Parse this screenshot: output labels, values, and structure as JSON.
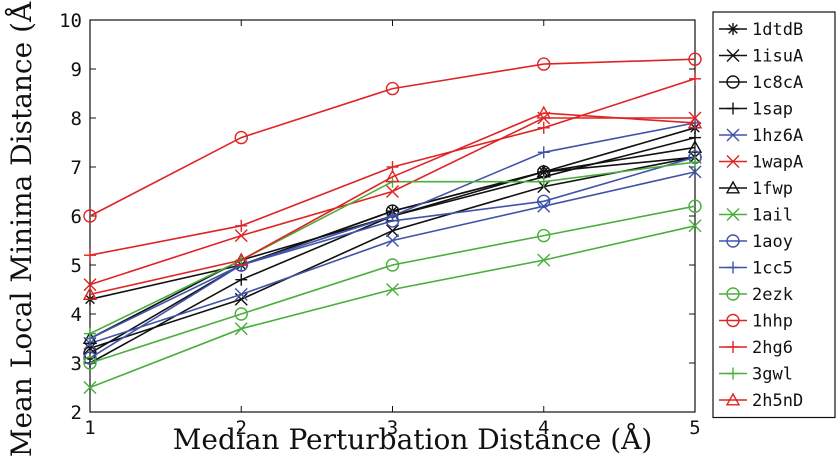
{
  "chart_data": {
    "type": "line",
    "title": "",
    "xlabel": "Median Perturbation Distance (Å)",
    "ylabel": "Mean Local Minima Distance (Å)",
    "xlim": [
      1,
      5
    ],
    "ylim": [
      2,
      10
    ],
    "x_ticks": [
      1,
      2,
      3,
      4,
      5
    ],
    "y_ticks": [
      2,
      3,
      4,
      5,
      6,
      7,
      8,
      9,
      10
    ],
    "legend_position": "right",
    "x": [
      1,
      2,
      3,
      4,
      5
    ],
    "series": [
      {
        "name": "1dtdB",
        "color": "#111111",
        "marker": "asterisk",
        "values": [
          4.3,
          5.0,
          6.1,
          6.9,
          7.8
        ]
      },
      {
        "name": "1isuA",
        "color": "#111111",
        "marker": "x",
        "values": [
          3.3,
          4.3,
          5.7,
          6.6,
          7.2
        ]
      },
      {
        "name": "1c8cA",
        "color": "#111111",
        "marker": "circle",
        "values": [
          3.2,
          5.0,
          6.1,
          6.9,
          7.2
        ]
      },
      {
        "name": "1sap",
        "color": "#111111",
        "marker": "plus",
        "values": [
          3.0,
          4.7,
          6.0,
          6.8,
          7.6
        ]
      },
      {
        "name": "1hz6A",
        "color": "#3f54a8",
        "marker": "x",
        "values": [
          3.4,
          4.4,
          5.5,
          6.2,
          6.9
        ]
      },
      {
        "name": "1wapA",
        "color": "#e02424",
        "marker": "x",
        "values": [
          4.6,
          5.6,
          6.5,
          8.0,
          8.0
        ]
      },
      {
        "name": "1fwp",
        "color": "#111111",
        "marker": "triangle",
        "values": [
          3.5,
          5.1,
          6.0,
          6.9,
          7.4
        ]
      },
      {
        "name": "1ail",
        "color": "#4aae3c",
        "marker": "x",
        "values": [
          2.5,
          3.7,
          4.5,
          5.1,
          5.8
        ]
      },
      {
        "name": "1aoy",
        "color": "#3f54a8",
        "marker": "circle",
        "values": [
          3.1,
          5.0,
          5.9,
          6.3,
          7.2
        ]
      },
      {
        "name": "1cc5",
        "color": "#3f54a8",
        "marker": "plus",
        "values": [
          3.5,
          5.0,
          6.0,
          7.3,
          7.9
        ]
      },
      {
        "name": "2ezk",
        "color": "#4aae3c",
        "marker": "circle",
        "values": [
          3.0,
          4.0,
          5.0,
          5.6,
          6.2
        ]
      },
      {
        "name": "1hhp",
        "color": "#e02424",
        "marker": "circle",
        "values": [
          6.0,
          7.6,
          8.6,
          9.1,
          9.2
        ]
      },
      {
        "name": "2hg6",
        "color": "#e02424",
        "marker": "plus",
        "values": [
          5.2,
          5.8,
          7.0,
          7.8,
          8.8
        ]
      },
      {
        "name": "3gwl",
        "color": "#4aae3c",
        "marker": "plus",
        "values": [
          3.6,
          5.1,
          6.7,
          6.7,
          7.1
        ]
      },
      {
        "name": "2h5nD",
        "color": "#e02424",
        "marker": "triangle",
        "values": [
          4.4,
          5.1,
          6.8,
          8.1,
          7.9
        ]
      }
    ]
  }
}
